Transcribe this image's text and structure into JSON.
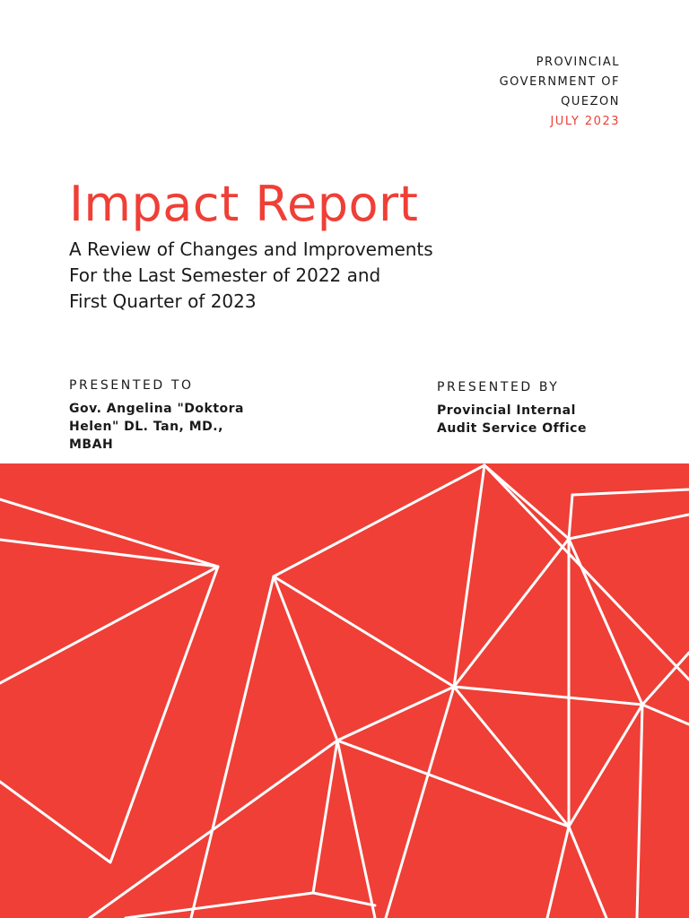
{
  "organization": {
    "lines": [
      "PROVINCIAL",
      "GOVERNMENT OF",
      "QUEZON"
    ],
    "date": "JULY 2023"
  },
  "title": "Impact Report",
  "subtitle": {
    "lines": [
      "A Review of Changes and Improvements",
      "For the Last Semester of 2022 and",
      "First Quarter of 2023"
    ]
  },
  "presented_to": {
    "heading": "PRESENTED TO",
    "lines": [
      "Gov. Angelina \"Doktora",
      "Helen\" DL. Tan, MD.,",
      "MBAH"
    ]
  },
  "presented_by": {
    "heading": "PRESENTED BY",
    "lines": [
      "Provincial Internal",
      "Audit Service Office"
    ]
  },
  "colors": {
    "accent": "#ef3f37",
    "text": "#1a1a1a",
    "background": "#ffffff",
    "lines": "#ffffff"
  }
}
